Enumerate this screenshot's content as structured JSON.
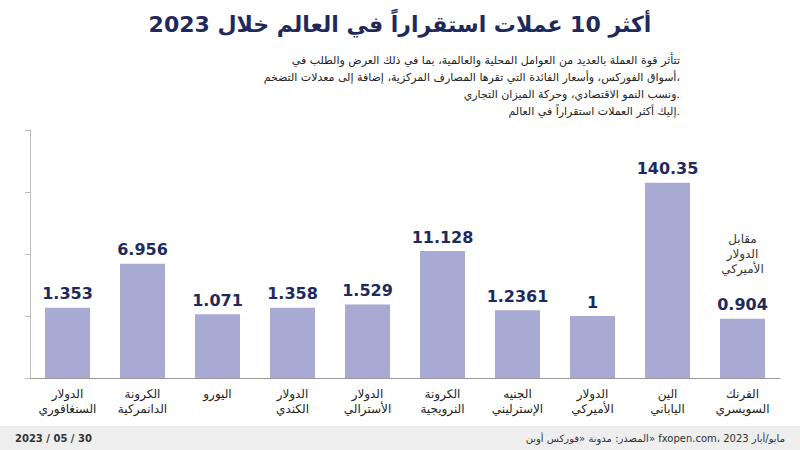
{
  "chart_data": {
    "type": "bar",
    "title": "أكثر 10 عملات استقراراً في العالم خلال 2023",
    "description": [
      "تتأثر قوة العملة بالعديد من العوامل المحلية والعالمية، بما في ذلك العرض والطلب في",
      "أسواق الفوركس، وأسعار الفائدة التي تقرها المصارف المركزية، إضافة إلى معدلات التضخم،",
      "ونسب النمو الاقتصادي، وحركة الميزان التجاري.",
      "إليك أكثر العملات استقراراً في العالم."
    ],
    "ylabel": "مقابل الدولار الأميركي",
    "categories": [
      "الدولار السنغافوري",
      "الكرونة الدانمركية",
      "اليورو",
      "الدولار الكندي",
      "الدولار الأسترالي",
      "الكرونة النرويجية",
      "الجنيه الإسترليني",
      "الدولار الأميركي",
      "الين الياباني",
      "الفرنك السويسري"
    ],
    "values": [
      1.353,
      6.956,
      1.071,
      1.358,
      1.529,
      11.128,
      1.2361,
      1,
      140.35,
      0.904
    ],
    "color": "#a9aad4",
    "ylim": [
      0.1,
      1000
    ],
    "yticks": [
      0.1,
      1,
      10,
      100,
      1000
    ],
    "log": "y",
    "grid": false,
    "data_labels": true,
    "tick_labels": "x",
    "source": "المصدر: مدونة «فوركس أوبن» fxopen.com، مايو/أيار 2023",
    "date": "2023 / 05 / 30"
  }
}
